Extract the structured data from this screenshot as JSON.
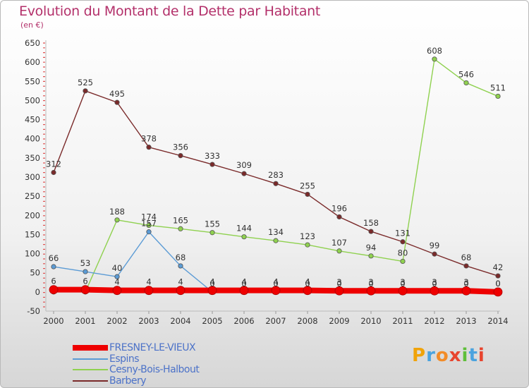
{
  "header": {
    "title": "Evolution du Montant de la Dette par Habitant",
    "subtitle": "(en €)"
  },
  "brand": {
    "logo_text": "Proxiti",
    "logo_colors": [
      "#f0a30a",
      "#4aa3df",
      "#f28c28",
      "#e8442e",
      "#5fbf3a",
      "#4aa3df",
      "#e8442e"
    ]
  },
  "chart_data": {
    "type": "line",
    "title": "Evolution du Montant de la Dette par Habitant",
    "subtitle": "(en €)",
    "x": [
      "2000",
      "2001",
      "2002",
      "2003",
      "2004",
      "2005",
      "2006",
      "2007",
      "2008",
      "2009",
      "2010",
      "2011",
      "2012",
      "2013",
      "2014"
    ],
    "ylim": [
      -50,
      650
    ],
    "yticks": [
      -50,
      0,
      50,
      100,
      150,
      200,
      250,
      300,
      350,
      400,
      450,
      500,
      550,
      600,
      650
    ],
    "grid": false,
    "legend_position": "bottom-left",
    "series": [
      {
        "name": "FRESNEY-LE-VIEUX",
        "color": "#ee0000",
        "thick": true,
        "values": [
          6,
          6,
          4,
          4,
          4,
          4,
          4,
          4,
          4,
          3,
          3,
          3,
          3,
          3,
          0
        ],
        "labels": [
          "6",
          "6",
          "4",
          "4",
          "4",
          "4",
          "4",
          "4",
          "4",
          "3",
          "3",
          "3",
          "3",
          "3",
          "0"
        ]
      },
      {
        "name": "Espins",
        "color": "#5b9bd5",
        "thick": false,
        "values": [
          66,
          53,
          40,
          157,
          68,
          0,
          0,
          0,
          0,
          0,
          0,
          0,
          0,
          0,
          0
        ],
        "labels": [
          "66",
          "53",
          "40",
          "157",
          "68",
          "0",
          "0",
          "0",
          "0",
          "0",
          "0",
          "0",
          "0",
          "0",
          "0"
        ]
      },
      {
        "name": "Cesny-Bois-Halbout",
        "color": "#8fd14f",
        "thick": false,
        "values": [
          0,
          0,
          188,
          174,
          165,
          155,
          144,
          134,
          123,
          107,
          94,
          80,
          608,
          546,
          511
        ],
        "labels": [
          "",
          "",
          "188",
          "174",
          "165",
          "155",
          "144",
          "134",
          "123",
          "107",
          "94",
          "80",
          "608",
          "546",
          "511"
        ]
      },
      {
        "name": "Barbery",
        "color": "#7a2a2a",
        "thick": false,
        "values": [
          312,
          525,
          495,
          378,
          356,
          333,
          309,
          283,
          255,
          196,
          158,
          131,
          99,
          68,
          42
        ],
        "labels": [
          "312",
          "525",
          "495",
          "378",
          "356",
          "333",
          "309",
          "283",
          "255",
          "196",
          "158",
          "131",
          "99",
          "68",
          "42"
        ]
      }
    ]
  }
}
